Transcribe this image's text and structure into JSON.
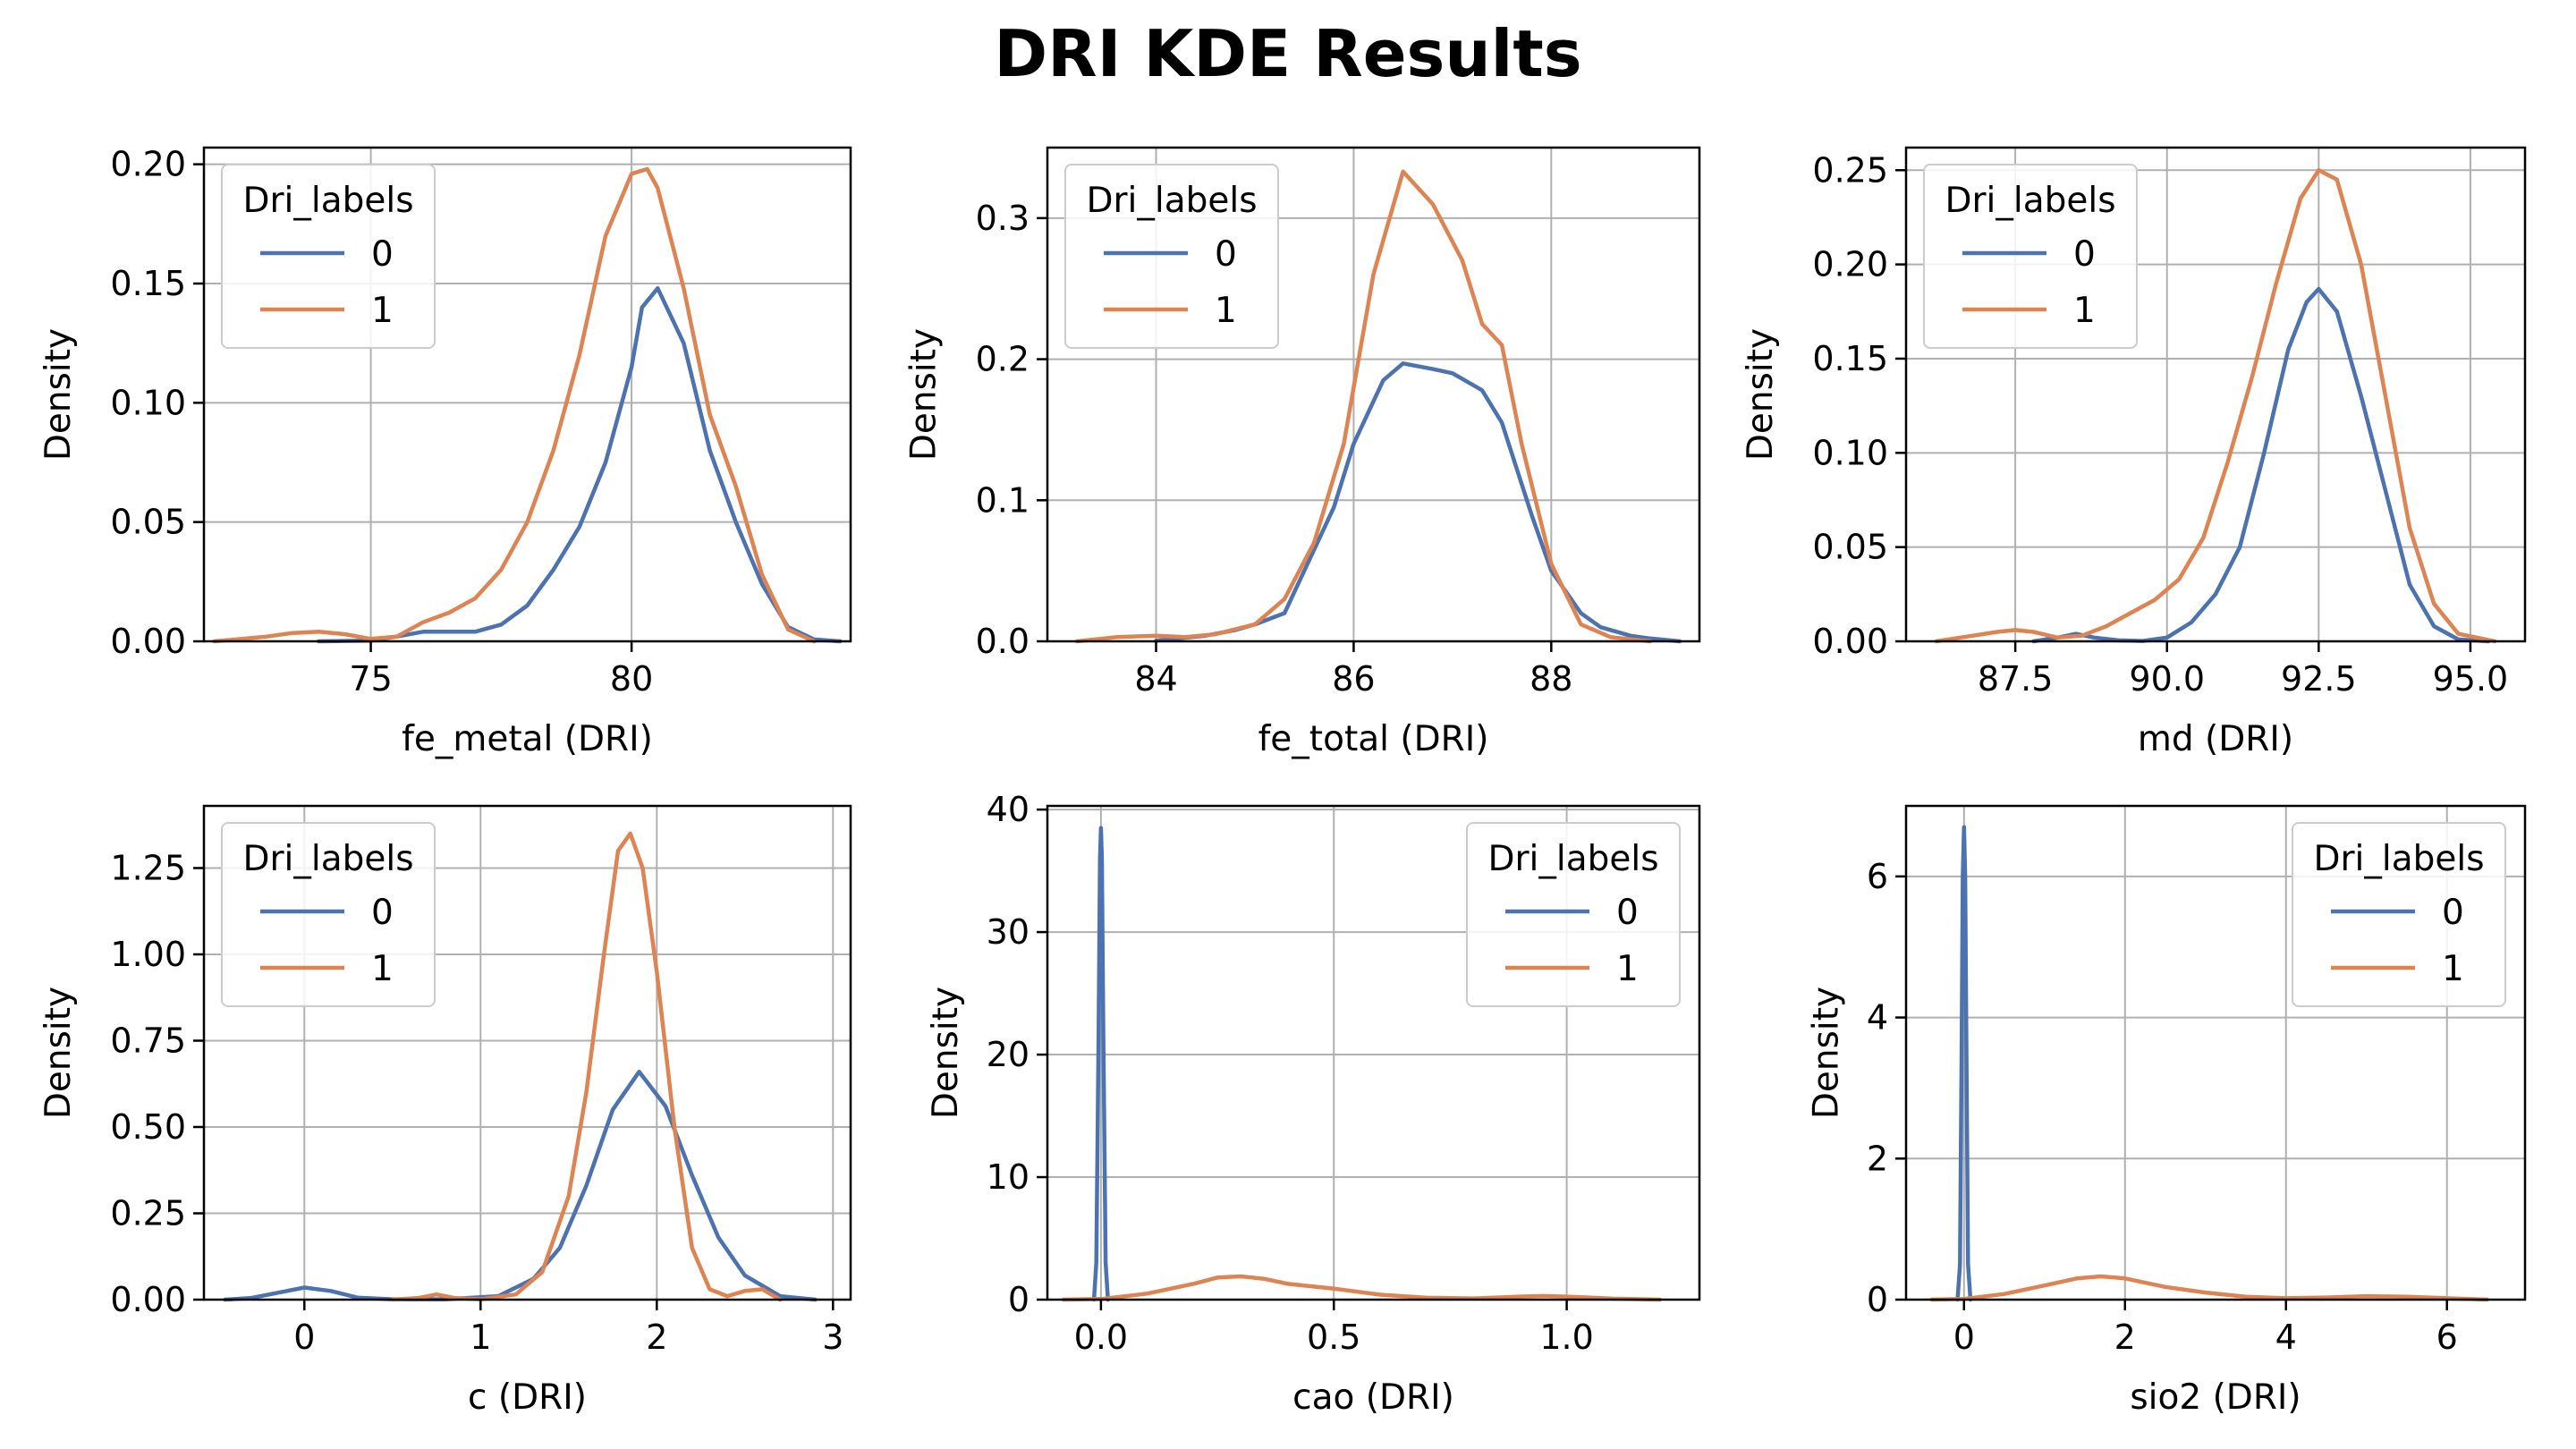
{
  "title": "DRI KDE Results",
  "colors": {
    "series_0": "#4c72b0",
    "series_1": "#dd8452",
    "grid": "#b0b0b0",
    "frame": "#000000"
  },
  "chart_data": [
    {
      "type": "line",
      "xlabel": "fe_metal (DRI)",
      "ylabel": "Density",
      "xlim": [
        71.8,
        84.2
      ],
      "ylim": [
        0,
        0.207
      ],
      "xticks": [
        75,
        80
      ],
      "yticks": [
        0.0,
        0.05,
        0.1,
        0.15,
        0.2
      ],
      "xtick_labels": [
        "75",
        "80"
      ],
      "ytick_labels": [
        "0.00",
        "0.05",
        "0.10",
        "0.15",
        "0.20"
      ],
      "grid": true,
      "legend": {
        "title": "Dri_labels",
        "placement": "top-left",
        "entries": [
          "0",
          "1"
        ]
      },
      "series": [
        {
          "name": "0",
          "x": [
            74.0,
            75.0,
            75.5,
            76.0,
            76.5,
            77.0,
            77.5,
            78.0,
            78.5,
            79.0,
            79.5,
            80.0,
            80.2,
            80.5,
            81.0,
            81.5,
            82.0,
            82.5,
            83.0,
            83.5,
            84.0
          ],
          "y": [
            0,
            0.0003,
            0.002,
            0.004,
            0.004,
            0.004,
            0.007,
            0.015,
            0.03,
            0.048,
            0.075,
            0.115,
            0.14,
            0.148,
            0.125,
            0.08,
            0.05,
            0.024,
            0.006,
            0.0008,
            0
          ]
        },
        {
          "name": "1",
          "x": [
            72.0,
            73.0,
            73.5,
            74.0,
            74.5,
            75.0,
            75.5,
            76.0,
            76.5,
            77.0,
            77.5,
            78.0,
            78.5,
            79.0,
            79.5,
            80.0,
            80.3,
            80.5,
            81.0,
            81.5,
            82.0,
            82.5,
            83.0,
            83.5
          ],
          "y": [
            0,
            0.002,
            0.0035,
            0.004,
            0.003,
            0.001,
            0.002,
            0.008,
            0.012,
            0.018,
            0.03,
            0.05,
            0.08,
            0.12,
            0.17,
            0.196,
            0.198,
            0.19,
            0.148,
            0.095,
            0.065,
            0.028,
            0.005,
            0
          ]
        }
      ]
    },
    {
      "type": "line",
      "xlabel": "fe_total (DRI)",
      "ylabel": "Density",
      "xlim": [
        82.9,
        89.5
      ],
      "ylim": [
        0,
        0.35
      ],
      "xticks": [
        84,
        86,
        88
      ],
      "yticks": [
        0.0,
        0.1,
        0.2,
        0.3
      ],
      "xtick_labels": [
        "84",
        "86",
        "88"
      ],
      "ytick_labels": [
        "0.0",
        "0.1",
        "0.2",
        "0.3"
      ],
      "grid": true,
      "legend": {
        "title": "Dri_labels",
        "placement": "top-left",
        "entries": [
          "0",
          "1"
        ]
      },
      "series": [
        {
          "name": "0",
          "x": [
            84.0,
            84.5,
            84.8,
            85.0,
            85.3,
            85.5,
            85.8,
            86.0,
            86.3,
            86.5,
            86.8,
            87.0,
            87.3,
            87.5,
            87.8,
            88.0,
            88.3,
            88.5,
            88.8,
            89.0,
            89.3
          ],
          "y": [
            0.0005,
            0.004,
            0.008,
            0.012,
            0.02,
            0.05,
            0.095,
            0.14,
            0.185,
            0.197,
            0.193,
            0.19,
            0.178,
            0.155,
            0.09,
            0.05,
            0.02,
            0.01,
            0.004,
            0.002,
            0
          ]
        },
        {
          "name": "1",
          "x": [
            83.2,
            83.6,
            84.0,
            84.3,
            84.6,
            85.0,
            85.3,
            85.6,
            85.9,
            86.2,
            86.5,
            86.8,
            87.1,
            87.3,
            87.5,
            87.7,
            88.0,
            88.3,
            88.6,
            89.0
          ],
          "y": [
            0,
            0.003,
            0.004,
            0.003,
            0.005,
            0.012,
            0.03,
            0.07,
            0.14,
            0.26,
            0.333,
            0.31,
            0.27,
            0.225,
            0.21,
            0.14,
            0.055,
            0.012,
            0.003,
            0
          ]
        }
      ]
    },
    {
      "type": "line",
      "xlabel": "md (DRI)",
      "ylabel": "Density",
      "xlim": [
        85.7,
        95.9
      ],
      "ylim": [
        0,
        0.262
      ],
      "xticks": [
        87.5,
        90.0,
        92.5,
        95.0
      ],
      "yticks": [
        0.0,
        0.05,
        0.1,
        0.15,
        0.2,
        0.25
      ],
      "xtick_labels": [
        "87.5",
        "90.0",
        "92.5",
        "95.0"
      ],
      "ytick_labels": [
        "0.00",
        "0.05",
        "0.10",
        "0.15",
        "0.20",
        "0.25"
      ],
      "grid": true,
      "legend": {
        "title": "Dri_labels",
        "placement": "top-left",
        "entries": [
          "0",
          "1"
        ]
      },
      "series": [
        {
          "name": "0",
          "x": [
            87.8,
            88.2,
            88.5,
            88.8,
            89.2,
            89.6,
            90.0,
            90.4,
            90.8,
            91.2,
            91.6,
            92.0,
            92.3,
            92.5,
            92.8,
            93.2,
            93.6,
            94.0,
            94.4,
            94.8,
            95.3
          ],
          "y": [
            0,
            0.002,
            0.004,
            0.002,
            0.0005,
            0.0002,
            0.002,
            0.01,
            0.025,
            0.05,
            0.1,
            0.155,
            0.18,
            0.187,
            0.175,
            0.13,
            0.08,
            0.03,
            0.008,
            0.001,
            0
          ]
        },
        {
          "name": "1",
          "x": [
            86.2,
            86.8,
            87.2,
            87.5,
            87.8,
            88.2,
            88.6,
            89.0,
            89.4,
            89.8,
            90.2,
            90.6,
            91.0,
            91.4,
            91.8,
            92.2,
            92.5,
            92.8,
            93.2,
            93.6,
            94.0,
            94.4,
            94.8,
            95.4
          ],
          "y": [
            0,
            0.003,
            0.005,
            0.006,
            0.005,
            0.002,
            0.003,
            0.008,
            0.015,
            0.022,
            0.033,
            0.055,
            0.095,
            0.14,
            0.19,
            0.235,
            0.25,
            0.245,
            0.2,
            0.13,
            0.06,
            0.02,
            0.004,
            0
          ]
        }
      ]
    },
    {
      "type": "line",
      "xlabel": "c (DRI)",
      "ylabel": "Density",
      "xlim": [
        -0.57,
        3.1
      ],
      "ylim": [
        0,
        1.43
      ],
      "xticks": [
        0,
        1,
        2,
        3
      ],
      "yticks": [
        0.0,
        0.25,
        0.5,
        0.75,
        1.0,
        1.25
      ],
      "xtick_labels": [
        "0",
        "1",
        "2",
        "3"
      ],
      "ytick_labels": [
        "0.00",
        "0.25",
        "0.50",
        "0.75",
        "1.00",
        "1.25"
      ],
      "grid": true,
      "legend": {
        "title": "Dri_labels",
        "placement": "top-left",
        "entries": [
          "0",
          "1"
        ]
      },
      "series": [
        {
          "name": "0",
          "x": [
            -0.45,
            -0.3,
            -0.15,
            0.0,
            0.15,
            0.3,
            0.5,
            0.8,
            1.1,
            1.3,
            1.45,
            1.6,
            1.75,
            1.9,
            2.05,
            2.2,
            2.35,
            2.5,
            2.7,
            2.9
          ],
          "y": [
            0,
            0.005,
            0.02,
            0.035,
            0.025,
            0.006,
            0.001,
            0.001,
            0.01,
            0.06,
            0.15,
            0.33,
            0.55,
            0.66,
            0.56,
            0.36,
            0.18,
            0.07,
            0.01,
            0
          ]
        },
        {
          "name": "1",
          "x": [
            0.5,
            0.65,
            0.75,
            0.85,
            1.0,
            1.2,
            1.35,
            1.5,
            1.6,
            1.7,
            1.78,
            1.85,
            1.92,
            2.0,
            2.1,
            2.2,
            2.3,
            2.4,
            2.5,
            2.6,
            2.7
          ],
          "y": [
            0,
            0.005,
            0.015,
            0.005,
            0.001,
            0.015,
            0.08,
            0.3,
            0.6,
            1.0,
            1.3,
            1.35,
            1.25,
            0.95,
            0.5,
            0.15,
            0.03,
            0.01,
            0.025,
            0.03,
            0
          ]
        }
      ]
    },
    {
      "type": "line",
      "xlabel": "cao (DRI)",
      "ylabel": "Density",
      "xlim": [
        -0.115,
        1.285
      ],
      "ylim": [
        0,
        40.3
      ],
      "xticks": [
        0.0,
        0.5,
        1.0
      ],
      "yticks": [
        0,
        10,
        20,
        30,
        40
      ],
      "xtick_labels": [
        "0.0",
        "0.5",
        "1.0"
      ],
      "ytick_labels": [
        "0",
        "10",
        "20",
        "30",
        "40"
      ],
      "grid": true,
      "legend": {
        "title": "Dri_labels",
        "placement": "top-right",
        "entries": [
          "0",
          "1"
        ]
      },
      "series": [
        {
          "name": "0",
          "x": [
            -0.015,
            -0.01,
            -0.005,
            -0.002,
            0.0,
            0.002,
            0.005,
            0.01,
            0.015
          ],
          "y": [
            0,
            3,
            22,
            36,
            38.5,
            36,
            22,
            3,
            0
          ]
        },
        {
          "name": "1",
          "x": [
            -0.08,
            0.0,
            0.1,
            0.2,
            0.25,
            0.3,
            0.35,
            0.4,
            0.5,
            0.6,
            0.7,
            0.8,
            0.9,
            0.95,
            1.0,
            1.1,
            1.2
          ],
          "y": [
            0,
            0.05,
            0.5,
            1.3,
            1.8,
            1.9,
            1.7,
            1.3,
            0.9,
            0.4,
            0.15,
            0.1,
            0.25,
            0.3,
            0.25,
            0.08,
            0
          ]
        }
      ]
    },
    {
      "type": "line",
      "xlabel": "sio2 (DRI)",
      "ylabel": "Density",
      "xlim": [
        -0.72,
        6.97
      ],
      "ylim": [
        0,
        7.0
      ],
      "xticks": [
        0,
        2,
        4,
        6
      ],
      "yticks": [
        0,
        2,
        4,
        6
      ],
      "xtick_labels": [
        "0",
        "2",
        "4",
        "6"
      ],
      "ytick_labels": [
        "0",
        "2",
        "4",
        "6"
      ],
      "grid": true,
      "legend": {
        "title": "Dri_labels",
        "placement": "top-right",
        "entries": [
          "0",
          "1"
        ]
      },
      "series": [
        {
          "name": "0",
          "x": [
            -0.08,
            -0.05,
            -0.03,
            -0.015,
            0.0,
            0.015,
            0.03,
            0.05,
            0.08
          ],
          "y": [
            0,
            0.5,
            3.5,
            6.0,
            6.7,
            6.0,
            3.5,
            0.5,
            0
          ]
        },
        {
          "name": "1",
          "x": [
            -0.4,
            0.0,
            0.5,
            1.0,
            1.4,
            1.7,
            2.0,
            2.5,
            3.0,
            3.5,
            4.0,
            4.5,
            5.0,
            5.5,
            6.0,
            6.5
          ],
          "y": [
            0,
            0.01,
            0.08,
            0.2,
            0.3,
            0.33,
            0.3,
            0.18,
            0.1,
            0.04,
            0.02,
            0.03,
            0.05,
            0.04,
            0.02,
            0
          ]
        }
      ]
    }
  ]
}
